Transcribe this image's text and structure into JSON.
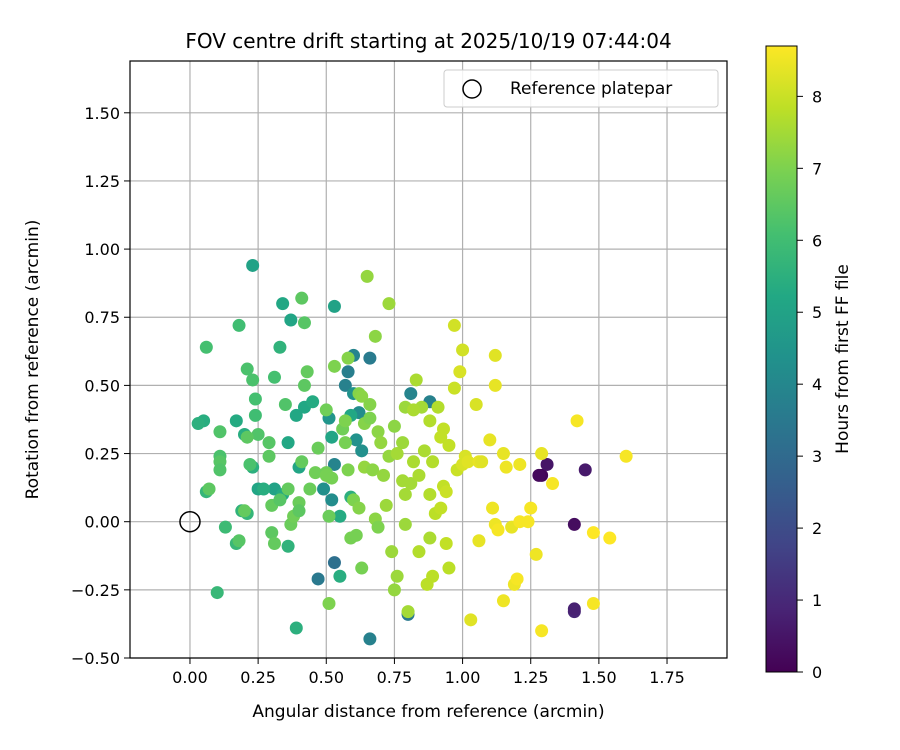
{
  "chart_data": {
    "type": "scatter",
    "title": "FOV centre drift starting at 2025/10/19 07:44:04",
    "xlabel": "Angular distance from reference (arcmin)",
    "ylabel": "Rotation from reference (arcmin)",
    "xlim": [
      -0.22,
      1.97
    ],
    "ylim": [
      -0.5,
      1.69
    ],
    "xticks": [
      0.0,
      0.25,
      0.5,
      0.75,
      1.0,
      1.25,
      1.5,
      1.75
    ],
    "xtick_labels": [
      "0.00",
      "0.25",
      "0.50",
      "0.75",
      "1.00",
      "1.25",
      "1.50",
      "1.75"
    ],
    "yticks": [
      -0.5,
      -0.25,
      0.0,
      0.25,
      0.5,
      0.75,
      1.0,
      1.25,
      1.5
    ],
    "ytick_labels": [
      "−0.50",
      "−0.25",
      "0.00",
      "0.25",
      "0.50",
      "0.75",
      "1.00",
      "1.25",
      "1.50"
    ],
    "grid": true,
    "legend": {
      "position": "top-right",
      "entries": [
        "Reference platepar"
      ]
    },
    "reference_point": {
      "x": 0.0,
      "y": 0.0,
      "label": "Reference platepar"
    },
    "colorbar": {
      "label": "Hours from first FF file",
      "colormap": "viridis",
      "range": [
        0,
        8.7
      ],
      "ticks": [
        0,
        1,
        2,
        3,
        4,
        5,
        6,
        7,
        8
      ],
      "tick_labels": [
        "0",
        "1",
        "2",
        "3",
        "4",
        "5",
        "6",
        "7",
        "8"
      ]
    },
    "points": [
      [
        1.29,
        0.17,
        0.1
      ],
      [
        1.31,
        0.21,
        0.5
      ],
      [
        1.45,
        0.19,
        0.6
      ],
      [
        1.41,
        -0.33,
        0.9
      ],
      [
        1.41,
        -0.32,
        0.8
      ],
      [
        1.41,
        -0.01,
        0.3
      ],
      [
        1.28,
        0.17,
        0.2
      ],
      [
        0.53,
        -0.15,
        3.2
      ],
      [
        0.47,
        -0.21,
        3.5
      ],
      [
        0.66,
        -0.43,
        3.8
      ],
      [
        0.66,
        0.6,
        3.6
      ],
      [
        0.6,
        0.61,
        3.9
      ],
      [
        0.58,
        0.55,
        3.7
      ],
      [
        0.57,
        0.5,
        3.8
      ],
      [
        0.81,
        0.47,
        3.9
      ],
      [
        0.88,
        0.44,
        3.8
      ],
      [
        0.8,
        -0.34,
        3.5
      ],
      [
        0.53,
        0.21,
        3.9
      ],
      [
        0.52,
        0.08,
        4.2
      ],
      [
        0.49,
        0.12,
        4.3
      ],
      [
        0.51,
        0.38,
        4.5
      ],
      [
        0.61,
        0.3,
        4.4
      ],
      [
        0.63,
        0.26,
        4.3
      ],
      [
        0.6,
        0.47,
        4.4
      ],
      [
        0.62,
        0.4,
        4.2
      ],
      [
        0.23,
        0.94,
        5.0
      ],
      [
        0.34,
        0.8,
        5.2
      ],
      [
        0.37,
        0.74,
        5.1
      ],
      [
        0.53,
        0.79,
        5.0
      ],
      [
        0.05,
        0.37,
        5.4
      ],
      [
        0.03,
        0.36,
        5.5
      ],
      [
        0.17,
        0.37,
        5.3
      ],
      [
        0.2,
        0.32,
        5.4
      ],
      [
        0.25,
        0.12,
        5.1
      ],
      [
        0.31,
        0.12,
        5.0
      ],
      [
        0.34,
        0.1,
        5.3
      ],
      [
        0.36,
        0.29,
        5.2
      ],
      [
        0.39,
        0.39,
        5.2
      ],
      [
        0.4,
        0.2,
        5.1
      ],
      [
        0.39,
        -0.39,
        5.5
      ],
      [
        0.36,
        -0.09,
        5.6
      ],
      [
        0.23,
        0.2,
        5.5
      ],
      [
        0.27,
        0.12,
        5.4
      ],
      [
        0.42,
        0.42,
        5.2
      ],
      [
        0.45,
        0.44,
        5.3
      ],
      [
        0.59,
        0.39,
        5.2
      ],
      [
        0.52,
        0.31,
        5.1
      ],
      [
        0.55,
        -0.2,
        5.4
      ],
      [
        0.55,
        0.02,
        5.3
      ],
      [
        0.59,
        0.09,
        5.5
      ],
      [
        0.19,
        0.04,
        5.6
      ],
      [
        0.21,
        0.03,
        5.7
      ],
      [
        0.1,
        -0.26,
        5.8
      ],
      [
        0.13,
        -0.02,
        5.9
      ],
      [
        0.17,
        -0.08,
        5.8
      ],
      [
        0.06,
        0.11,
        5.7
      ],
      [
        0.33,
        0.64,
        5.6
      ],
      [
        0.18,
        0.72,
        6.0
      ],
      [
        0.06,
        0.64,
        6.1
      ],
      [
        0.21,
        0.56,
        6.2
      ],
      [
        0.23,
        0.52,
        6.2
      ],
      [
        0.24,
        0.45,
        6.1
      ],
      [
        0.24,
        0.39,
        6.0
      ],
      [
        0.31,
        0.53,
        6.1
      ],
      [
        0.35,
        0.43,
        6.3
      ],
      [
        0.41,
        0.82,
        6.5
      ],
      [
        0.42,
        0.73,
        6.4
      ],
      [
        0.42,
        0.5,
        6.5
      ],
      [
        0.43,
        0.55,
        6.6
      ],
      [
        0.11,
        0.33,
        6.3
      ],
      [
        0.11,
        0.24,
        6.2
      ],
      [
        0.11,
        0.22,
        6.4
      ],
      [
        0.11,
        0.19,
        6.3
      ],
      [
        0.07,
        0.12,
        6.5
      ],
      [
        0.18,
        -0.07,
        6.4
      ],
      [
        0.2,
        0.04,
        6.6
      ],
      [
        0.22,
        0.21,
        6.2
      ],
      [
        0.25,
        0.32,
        6.3
      ],
      [
        0.21,
        0.31,
        6.5
      ],
      [
        0.29,
        0.29,
        6.4
      ],
      [
        0.29,
        0.24,
        6.5
      ],
      [
        0.3,
        0.06,
        6.6
      ],
      [
        0.3,
        -0.04,
        6.5
      ],
      [
        0.31,
        -0.08,
        6.6
      ],
      [
        0.33,
        0.08,
        6.4
      ],
      [
        0.36,
        0.12,
        6.6
      ],
      [
        0.37,
        -0.01,
        6.7
      ],
      [
        0.38,
        0.02,
        6.8
      ],
      [
        0.4,
        0.07,
        6.7
      ],
      [
        0.4,
        0.04,
        6.5
      ],
      [
        0.41,
        0.22,
        6.6
      ],
      [
        0.44,
        0.12,
        6.7
      ],
      [
        0.46,
        0.18,
        6.8
      ],
      [
        0.47,
        0.27,
        6.7
      ],
      [
        0.5,
        0.41,
        6.8
      ],
      [
        0.5,
        0.18,
        6.8
      ],
      [
        0.5,
        0.17,
        6.9
      ],
      [
        0.51,
        0.02,
        6.7
      ],
      [
        0.51,
        -0.3,
        7.0
      ],
      [
        0.52,
        0.16,
        6.9
      ],
      [
        0.53,
        0.57,
        7.0
      ],
      [
        0.56,
        0.34,
        6.8
      ],
      [
        0.57,
        0.29,
        6.9
      ],
      [
        0.57,
        0.37,
        7.0
      ],
      [
        0.58,
        0.6,
        7.1
      ],
      [
        0.58,
        0.19,
        7.0
      ],
      [
        0.59,
        -0.06,
        6.9
      ],
      [
        0.6,
        0.08,
        7.0
      ],
      [
        0.61,
        -0.05,
        6.9
      ],
      [
        0.62,
        0.47,
        7.1
      ],
      [
        0.63,
        0.46,
        7.2
      ],
      [
        0.64,
        0.36,
        7.1
      ],
      [
        0.64,
        0.2,
        7.3
      ],
      [
        0.65,
        0.9,
        7.3
      ],
      [
        0.66,
        0.43,
        7.1
      ],
      [
        0.66,
        0.38,
        7.0
      ],
      [
        0.67,
        0.19,
        7.2
      ],
      [
        0.68,
        0.68,
        7.2
      ],
      [
        0.68,
        0.01,
        7.2
      ],
      [
        0.69,
        0.33,
        7.2
      ],
      [
        0.7,
        0.29,
        7.3
      ],
      [
        0.71,
        0.17,
        7.3
      ],
      [
        0.72,
        0.06,
        7.4
      ],
      [
        0.73,
        0.8,
        7.4
      ],
      [
        0.73,
        0.24,
        7.3
      ],
      [
        0.74,
        -0.11,
        7.4
      ],
      [
        0.75,
        0.35,
        7.2
      ],
      [
        0.75,
        -0.25,
        7.3
      ],
      [
        0.76,
        -0.2,
        7.4
      ],
      [
        0.76,
        0.25,
        7.5
      ],
      [
        0.78,
        0.29,
        7.4
      ],
      [
        0.78,
        0.15,
        7.5
      ],
      [
        0.79,
        0.1,
        7.5
      ],
      [
        0.79,
        0.42,
        7.4
      ],
      [
        0.8,
        -0.33,
        7.5
      ],
      [
        0.81,
        0.14,
        7.5
      ],
      [
        0.82,
        0.22,
        7.6
      ],
      [
        0.83,
        0.52,
        7.6
      ],
      [
        0.84,
        0.17,
        7.6
      ],
      [
        0.84,
        -0.11,
        7.7
      ],
      [
        0.85,
        0.42,
        7.5
      ],
      [
        0.86,
        0.26,
        7.6
      ],
      [
        0.87,
        -0.23,
        7.8
      ],
      [
        0.88,
        0.1,
        7.7
      ],
      [
        0.88,
        0.37,
        7.7
      ],
      [
        0.88,
        -0.06,
        7.6
      ],
      [
        0.89,
        0.22,
        7.7
      ],
      [
        0.89,
        -0.2,
        7.8
      ],
      [
        0.9,
        0.03,
        7.8
      ],
      [
        0.91,
        0.42,
        7.7
      ],
      [
        0.92,
        0.05,
        7.9
      ],
      [
        0.92,
        0.31,
        7.9
      ],
      [
        0.93,
        0.13,
        7.9
      ],
      [
        0.93,
        0.34,
        7.9
      ],
      [
        0.94,
        0.11,
        8.0
      ],
      [
        0.94,
        -0.08,
        7.9
      ],
      [
        0.95,
        0.28,
        7.9
      ],
      [
        0.97,
        0.49,
        8.0
      ],
      [
        0.97,
        0.72,
        8.1
      ],
      [
        0.98,
        0.19,
        8.0
      ],
      [
        0.99,
        0.55,
        8.2
      ],
      [
        1.0,
        0.63,
        8.1
      ],
      [
        1.0,
        0.21,
        8.2
      ],
      [
        1.01,
        0.24,
        8.2
      ],
      [
        1.02,
        0.22,
        8.3
      ],
      [
        1.03,
        -0.36,
        8.3
      ],
      [
        1.05,
        0.43,
        8.2
      ],
      [
        1.06,
        0.22,
        8.4
      ],
      [
        1.06,
        -0.07,
        8.4
      ],
      [
        1.07,
        0.22,
        8.3
      ],
      [
        1.1,
        0.3,
        8.4
      ],
      [
        1.11,
        0.05,
        8.5
      ],
      [
        1.12,
        0.61,
        8.3
      ],
      [
        1.12,
        0.5,
        8.4
      ],
      [
        1.12,
        -0.01,
        8.5
      ],
      [
        1.13,
        -0.03,
        8.6
      ],
      [
        1.15,
        0.25,
        8.4
      ],
      [
        1.15,
        -0.29,
        8.5
      ],
      [
        1.16,
        0.2,
        8.5
      ],
      [
        1.18,
        -0.02,
        8.4
      ],
      [
        1.19,
        -0.23,
        8.5
      ],
      [
        1.2,
        -0.21,
        8.6
      ],
      [
        1.21,
        0.0,
        8.6
      ],
      [
        1.21,
        0.21,
        8.5
      ],
      [
        1.24,
        0.0,
        8.6
      ],
      [
        1.25,
        0.05,
        8.6
      ],
      [
        1.27,
        -0.12,
        8.5
      ],
      [
        1.29,
        -0.4,
        8.6
      ],
      [
        1.29,
        0.25,
        8.4
      ],
      [
        1.33,
        0.14,
        8.6
      ],
      [
        1.42,
        0.37,
        8.6
      ],
      [
        1.48,
        -0.04,
        8.7
      ],
      [
        1.48,
        -0.3,
        8.6
      ],
      [
        1.54,
        -0.06,
        8.7
      ],
      [
        1.6,
        0.24,
        8.6
      ],
      [
        0.82,
        0.41,
        7.6
      ],
      [
        0.95,
        -0.17,
        7.8
      ],
      [
        0.63,
        -0.17,
        6.9
      ],
      [
        0.69,
        -0.02,
        7.0
      ],
      [
        0.62,
        0.05,
        7.1
      ],
      [
        0.79,
        -0.01,
        7.4
      ]
    ]
  }
}
